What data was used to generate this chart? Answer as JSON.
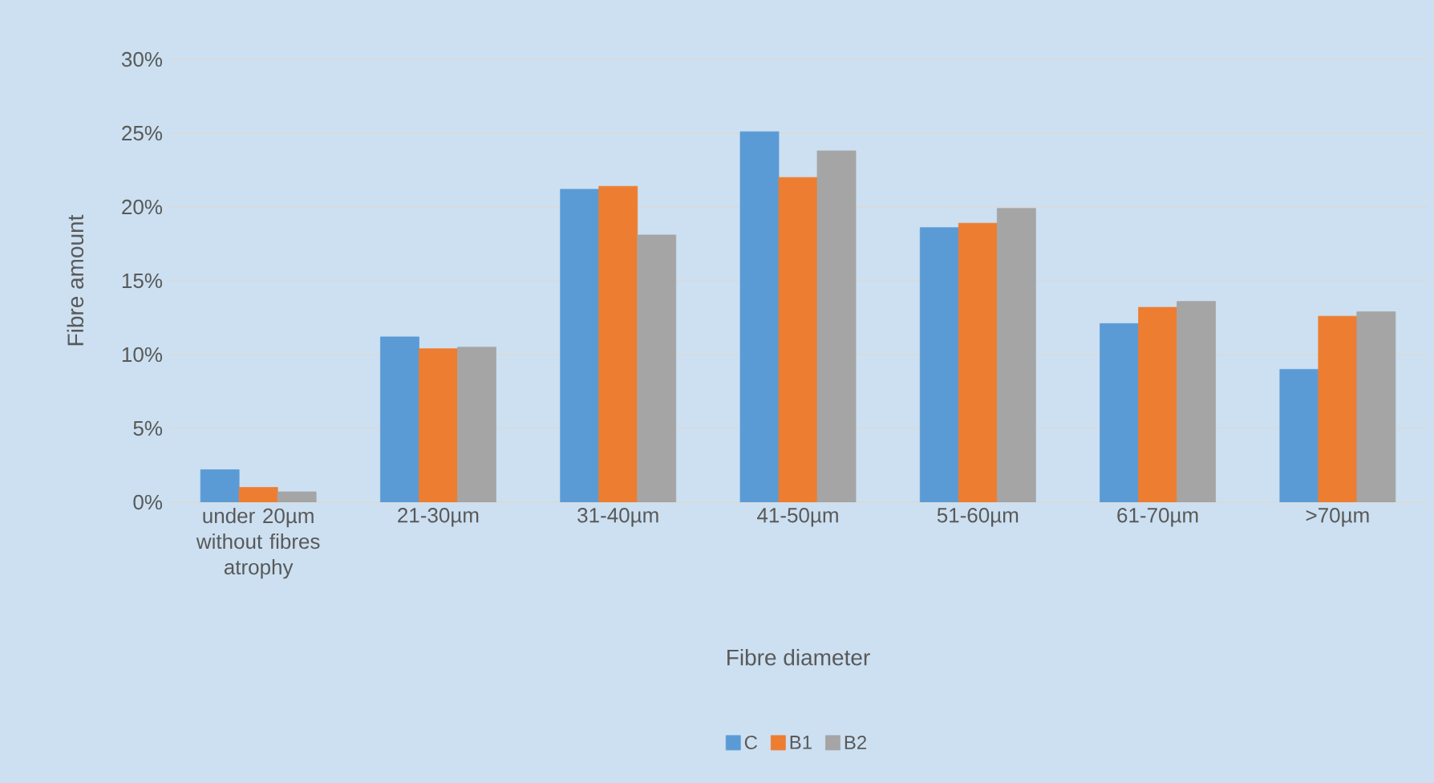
{
  "chart_data": {
    "type": "bar",
    "xlabel": "Fibre diameter",
    "ylabel": "Fibre amount",
    "categories": [
      "under 20µm without fibres atrophy",
      "21-30µm",
      "31-40µm",
      "41-50µm",
      "51-60µm",
      "61-70µm",
      ">70µm"
    ],
    "series": [
      {
        "name": "C",
        "color": "#5b9bd5",
        "values": [
          2.2,
          11.2,
          21.2,
          25.1,
          18.6,
          12.1,
          9.0
        ]
      },
      {
        "name": "B1",
        "color": "#ed7d31",
        "values": [
          1.0,
          10.4,
          21.4,
          22.0,
          18.9,
          13.2,
          12.6
        ]
      },
      {
        "name": "B2",
        "color": "#a5a5a5",
        "values": [
          0.7,
          10.5,
          18.1,
          23.8,
          19.9,
          13.6,
          12.9
        ]
      }
    ],
    "ylim": [
      0,
      30
    ],
    "yticks": [
      {
        "value": 0,
        "label": "0%"
      },
      {
        "value": 5,
        "label": "5%"
      },
      {
        "value": 10,
        "label": "10%"
      },
      {
        "value": 15,
        "label": "15%"
      },
      {
        "value": 20,
        "label": "20%"
      },
      {
        "value": 25,
        "label": "25%"
      },
      {
        "value": 30,
        "label": "30%"
      }
    ],
    "grid": "y",
    "legend": "bottom"
  }
}
